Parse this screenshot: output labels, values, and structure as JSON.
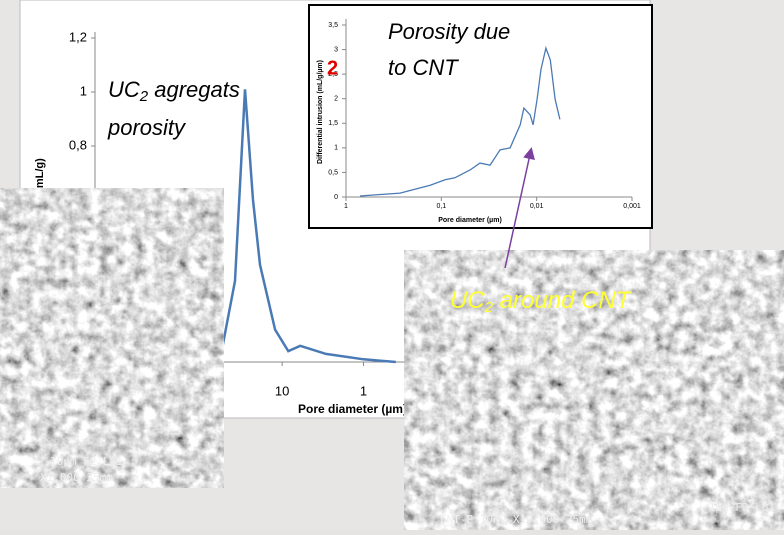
{
  "chart_data": [
    {
      "type": "line",
      "log_x": true,
      "y_label": "(mL/g)",
      "x_label": "Pore diameter (µm)",
      "annotation": {
        "lines": [
          [
            "UC",
            "2",
            " agregats"
          ],
          [
            "porosity"
          ]
        ]
      },
      "x": [
        56.6,
        38,
        28.6,
        22.8,
        18.7,
        12.2,
        8.4,
        6.0,
        2.9,
        1,
        0.4
      ],
      "series": [
        {
          "color": "#4a7ab5",
          "values": [
            0.026,
            0.3,
            1.01,
            0.6,
            0.36,
            0.12,
            0.04,
            0.06,
            0.03,
            0.01,
            0.0
          ]
        }
      ],
      "xlim": [
        2000,
        0.0003
      ],
      "xticks": [
        10,
        1
      ],
      "ylim": [
        0,
        1.2
      ],
      "yticks": [
        {
          "value": 0.8,
          "label": "0,8"
        },
        1,
        {
          "value": 1.2,
          "label": "1,2"
        }
      ]
    },
    {
      "type": "line",
      "log_x": true,
      "title": [
        "Porosity due",
        "to CNT"
      ],
      "marker": "2",
      "x_label": "Pore diameter (µm)",
      "y_label": "Differential intrusion (mL/g/µm)",
      "x": [
        0.713,
        0.271,
        0.131,
        0.0914,
        0.072,
        0.05,
        0.0393,
        0.0308,
        0.0242,
        0.019,
        0.0149,
        0.0136,
        0.0117,
        0.0109,
        0.0099,
        0.009,
        0.008,
        0.0072,
        0.0064,
        0.0057
      ],
      "series": [
        {
          "color": "#4a7ab5",
          "values": [
            0.02,
            0.08,
            0.24,
            0.35,
            0.39,
            0.55,
            0.69,
            0.65,
            0.96,
            1.0,
            1.47,
            1.81,
            1.67,
            1.47,
            1.99,
            2.6,
            3.03,
            2.79,
            1.99,
            1.58
          ]
        }
      ],
      "xlim": [
        1,
        0.001
      ],
      "xticks": [
        1,
        {
          "value": 0.1,
          "label": "0,1"
        },
        {
          "value": 0.01,
          "label": "0,01"
        },
        {
          "value": 0.001,
          "label": "0,001"
        }
      ],
      "ylim": [
        0,
        3.5
      ],
      "yticks": [
        0,
        {
          "value": 0.5,
          "label": "0,5"
        },
        1,
        {
          "value": 1.5,
          "label": "1,5"
        },
        2,
        {
          "value": 2.5,
          "label": "2,5"
        },
        3,
        {
          "value": 3.5,
          "label": "3,5"
        }
      ]
    }
  ],
  "images": [
    {
      "caption": [
        "10µm F2 L01",
        "X1,000 25mm"
      ]
    },
    {
      "overlay": [
        "UC",
        "2",
        " around CNT"
      ],
      "caption": [
        "1µm F2 L01",
        "CNT-P  10KV  X10,000 25mm"
      ]
    }
  ]
}
